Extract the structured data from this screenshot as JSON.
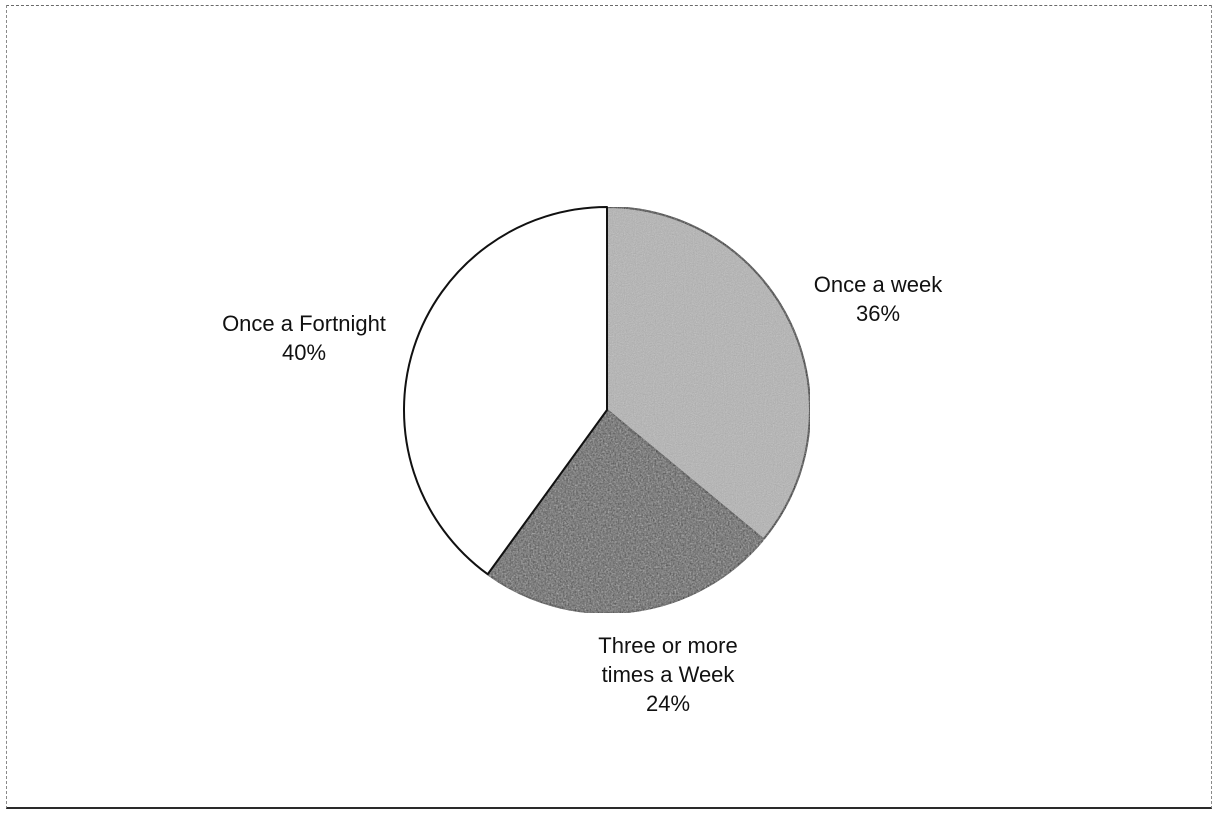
{
  "chart_data": {
    "type": "pie",
    "title": "",
    "slices": [
      {
        "label_lines": [
          "Once a week"
        ],
        "pct_label": "36%",
        "value": 36,
        "fill": "#b4b4b4"
      },
      {
        "label_lines": [
          "Three or more",
          "times a Week"
        ],
        "pct_label": "24%",
        "value": 24,
        "fill": "#4a4a4a"
      },
      {
        "label_lines": [
          "Once a Fortnight"
        ],
        "pct_label": "40%",
        "value": 40,
        "fill": "#ffffff"
      }
    ],
    "start_angle_deg": 0,
    "direction": "clockwise",
    "legend": "none"
  }
}
